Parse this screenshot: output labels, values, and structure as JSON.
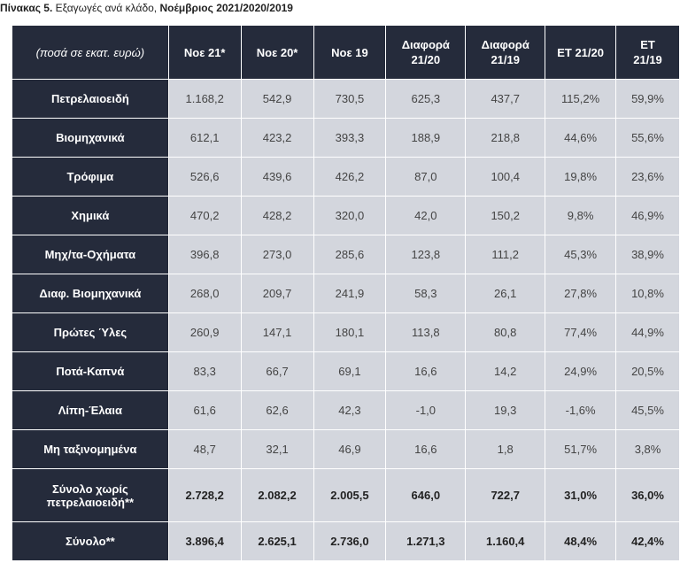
{
  "caption": {
    "prefix": "Πίνακας 5.",
    "text": " Εξαγωγές ανά κλάδο, ",
    "period": "Νοέμβριος 2021/2020/2019"
  },
  "table": {
    "headers": [
      [
        "(ποσά σε εκατ. ευρώ)"
      ],
      [
        "Νοε 21*"
      ],
      [
        "Νοε 20*"
      ],
      [
        "Νοε 19"
      ],
      [
        "Διαφορά",
        "21/20"
      ],
      [
        "Διαφορά",
        "21/19"
      ],
      [
        "ΕΤ 21/20"
      ],
      [
        "ΕΤ",
        "21/19"
      ]
    ],
    "rows": [
      {
        "label": [
          "Πετρελαιοειδή"
        ],
        "values": [
          "1.168,2",
          "542,9",
          "730,5",
          "625,3",
          "437,7",
          "115,2%",
          "59,9%"
        ]
      },
      {
        "label": [
          "Βιομηχανικά"
        ],
        "values": [
          "612,1",
          "423,2",
          "393,3",
          "188,9",
          "218,8",
          "44,6%",
          "55,6%"
        ]
      },
      {
        "label": [
          "Τρόφιμα"
        ],
        "values": [
          "526,6",
          "439,6",
          "426,2",
          "87,0",
          "100,4",
          "19,8%",
          "23,6%"
        ]
      },
      {
        "label": [
          "Χημικά"
        ],
        "values": [
          "470,2",
          "428,2",
          "320,0",
          "42,0",
          "150,2",
          "9,8%",
          "46,9%"
        ]
      },
      {
        "label": [
          "Μηχ/τα-Οχήματα"
        ],
        "values": [
          "396,8",
          "273,0",
          "285,6",
          "123,8",
          "111,2",
          "45,3%",
          "38,9%"
        ]
      },
      {
        "label": [
          "Διαφ. Βιομηχανικά"
        ],
        "values": [
          "268,0",
          "209,7",
          "241,9",
          "58,3",
          "26,1",
          "27,8%",
          "10,8%"
        ]
      },
      {
        "label": [
          "Πρώτες Ύλες"
        ],
        "values": [
          "260,9",
          "147,1",
          "180,1",
          "113,8",
          "80,8",
          "77,4%",
          "44,9%"
        ]
      },
      {
        "label": [
          "Ποτά-Καπνά"
        ],
        "values": [
          "83,3",
          "66,7",
          "69,1",
          "16,6",
          "14,2",
          "24,9%",
          "20,5%"
        ]
      },
      {
        "label": [
          "Λίπη-Έλαια"
        ],
        "values": [
          "61,6",
          "62,6",
          "42,3",
          "-1,0",
          "19,3",
          "-1,6%",
          "45,5%"
        ]
      },
      {
        "label": [
          "Μη ταξινομημένα"
        ],
        "values": [
          "48,7",
          "32,1",
          "46,9",
          "16,6",
          "1,8",
          "51,7%",
          "3,8%"
        ]
      },
      {
        "label": [
          "Σύνολο χωρίς",
          "πετρελαιοειδή**"
        ],
        "values": [
          "2.728,2",
          "2.082,2",
          "2.005,5",
          "646,0",
          "722,7",
          "31,0%",
          "36,0%"
        ],
        "total": true
      },
      {
        "label": [
          "Σύνολο**"
        ],
        "values": [
          "3.896,4",
          "2.625,1",
          "2.736,0",
          "1.271,3",
          "1.160,4",
          "48,4%",
          "42,4%"
        ],
        "total": true
      }
    ]
  }
}
